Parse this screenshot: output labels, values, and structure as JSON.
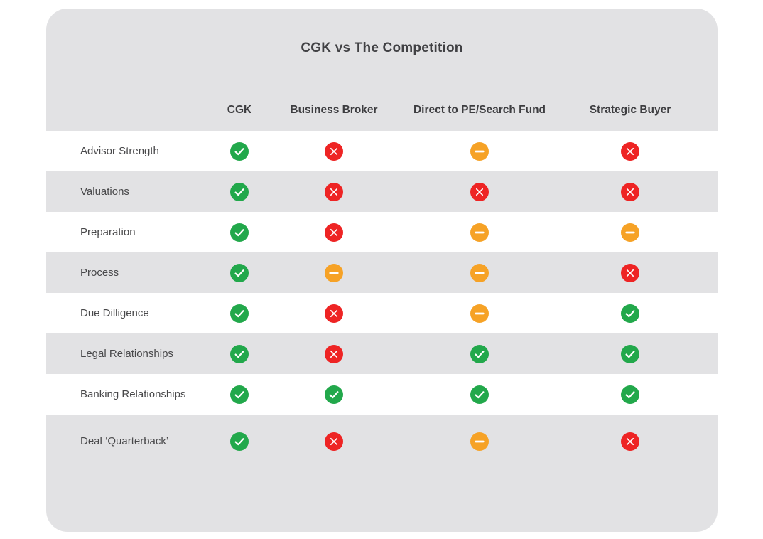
{
  "chart_data": {
    "type": "table",
    "title": "CGK vs The Competition",
    "columns": [
      "CGK",
      "Business Broker",
      "Direct to PE/Search Fund",
      "Strategic Buyer"
    ],
    "rows": [
      {
        "label": "Advisor Strength",
        "values": [
          "check",
          "x",
          "dash",
          "x"
        ]
      },
      {
        "label": "Valuations",
        "values": [
          "check",
          "x",
          "x",
          "x"
        ]
      },
      {
        "label": "Preparation",
        "values": [
          "check",
          "x",
          "dash",
          "dash"
        ]
      },
      {
        "label": "Process",
        "values": [
          "check",
          "dash",
          "dash",
          "x"
        ]
      },
      {
        "label": "Due Dilligence",
        "values": [
          "check",
          "x",
          "dash",
          "check"
        ]
      },
      {
        "label": "Legal Relationships",
        "values": [
          "check",
          "x",
          "check",
          "check"
        ]
      },
      {
        "label": "Banking Relationships",
        "values": [
          "check",
          "check",
          "check",
          "check"
        ]
      },
      {
        "label": "Deal ‘Quarterback’",
        "values": [
          "check",
          "x",
          "dash",
          "x"
        ]
      }
    ],
    "cell_glyphs": {
      "check": "green circle with white checkmark",
      "x": "red circle with white x",
      "dash": "orange circle with white dash"
    }
  },
  "style": {
    "card_background": "#e2e2e4",
    "row_alt_background": "#ffffff",
    "title_color": "#414144",
    "header_color": "#3d3d40",
    "label_color": "#48484a",
    "icon_colors": {
      "check": "#22a84b",
      "x": "#ee2424",
      "dash": "#f6a226"
    }
  }
}
